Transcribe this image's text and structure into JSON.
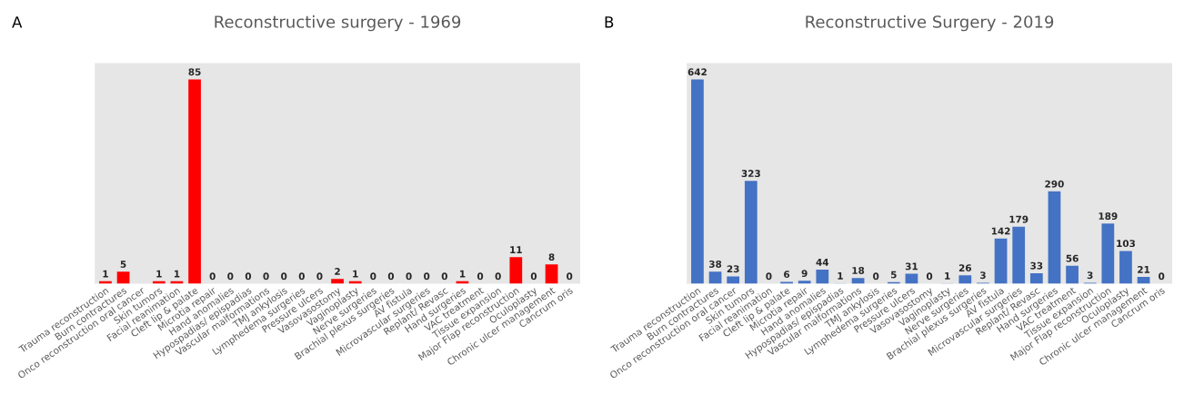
{
  "chart_data": [
    {
      "type": "bar",
      "title": "Reconstructive surgery - 1969",
      "annotations": [
        "A"
      ],
      "categories": [
        "Trauma reconstruction",
        "Burn contractures",
        "Onco reconstruction oral cancer",
        "Skin tumors",
        "Facial reanimation",
        "Cleft lip & palate",
        "Microtia repair",
        "Hand anomalies",
        "Hypospadias/ epispadias",
        "Vascular malformations",
        "TMJ ankylosis",
        "Lymphedema surgeries",
        "Pressure ulcers",
        "Vasovasostomy",
        "Vaginoplasty",
        "Nerve surgeries",
        "Brachial plexus surgeries",
        "AV fistula",
        "Microvascular surgeries",
        "Replant/ Revasc",
        "Hand surgeries",
        "VAC treatment",
        "Tissue expansion",
        "Major Flap reconstruction",
        "Oculoplasty",
        "Chronic ulcer management",
        "Cancrum oris"
      ],
      "values": [
        1,
        5,
        null,
        1,
        1,
        85,
        0,
        0,
        0,
        0,
        0,
        0,
        0,
        2,
        1,
        0,
        0,
        0,
        0,
        0,
        1,
        0,
        0,
        11,
        0,
        8,
        0
      ],
      "color": "#ff0000",
      "data_labels": true,
      "tick_labels": "x",
      "grid": false,
      "legend": false
    },
    {
      "type": "bar",
      "title": "Reconstructive Surgery - 2019",
      "annotations": [
        "B"
      ],
      "categories": [
        "Trauma reconstruction",
        "Burn contractures",
        "Onco reconstruction oral cancer",
        "Skin tumors",
        "Facial reanimation",
        "Cleft lip & palate",
        "Microtia repair",
        "Hand anomalies",
        "Hypospadias/ epispadias",
        "Vascular malformations",
        "TMJ ankylosis",
        "Lymphedema surgeries",
        "Pressure ulcers",
        "Vasovasostomy",
        "Vaginoplasty",
        "Nerve surgeries",
        "Brachial plexus surgeries",
        "AV fistula",
        "Microvascular surgeries",
        "Replant/ Revasc",
        "Hand surgeries",
        "VAC treatment",
        "Tissue expansion",
        "Major Flap reconstruction",
        "Oculoplasty",
        "Chronic ulcer management",
        "Cancrum oris"
      ],
      "values": [
        642,
        38,
        23,
        323,
        0,
        6,
        9,
        44,
        1,
        18,
        0,
        5,
        31,
        0,
        1,
        26,
        3,
        142,
        179,
        33,
        290,
        56,
        3,
        189,
        103,
        21,
        0
      ],
      "color": "#4472c4",
      "data_labels": true,
      "tick_labels": "x",
      "grid": false,
      "legend": false
    }
  ]
}
